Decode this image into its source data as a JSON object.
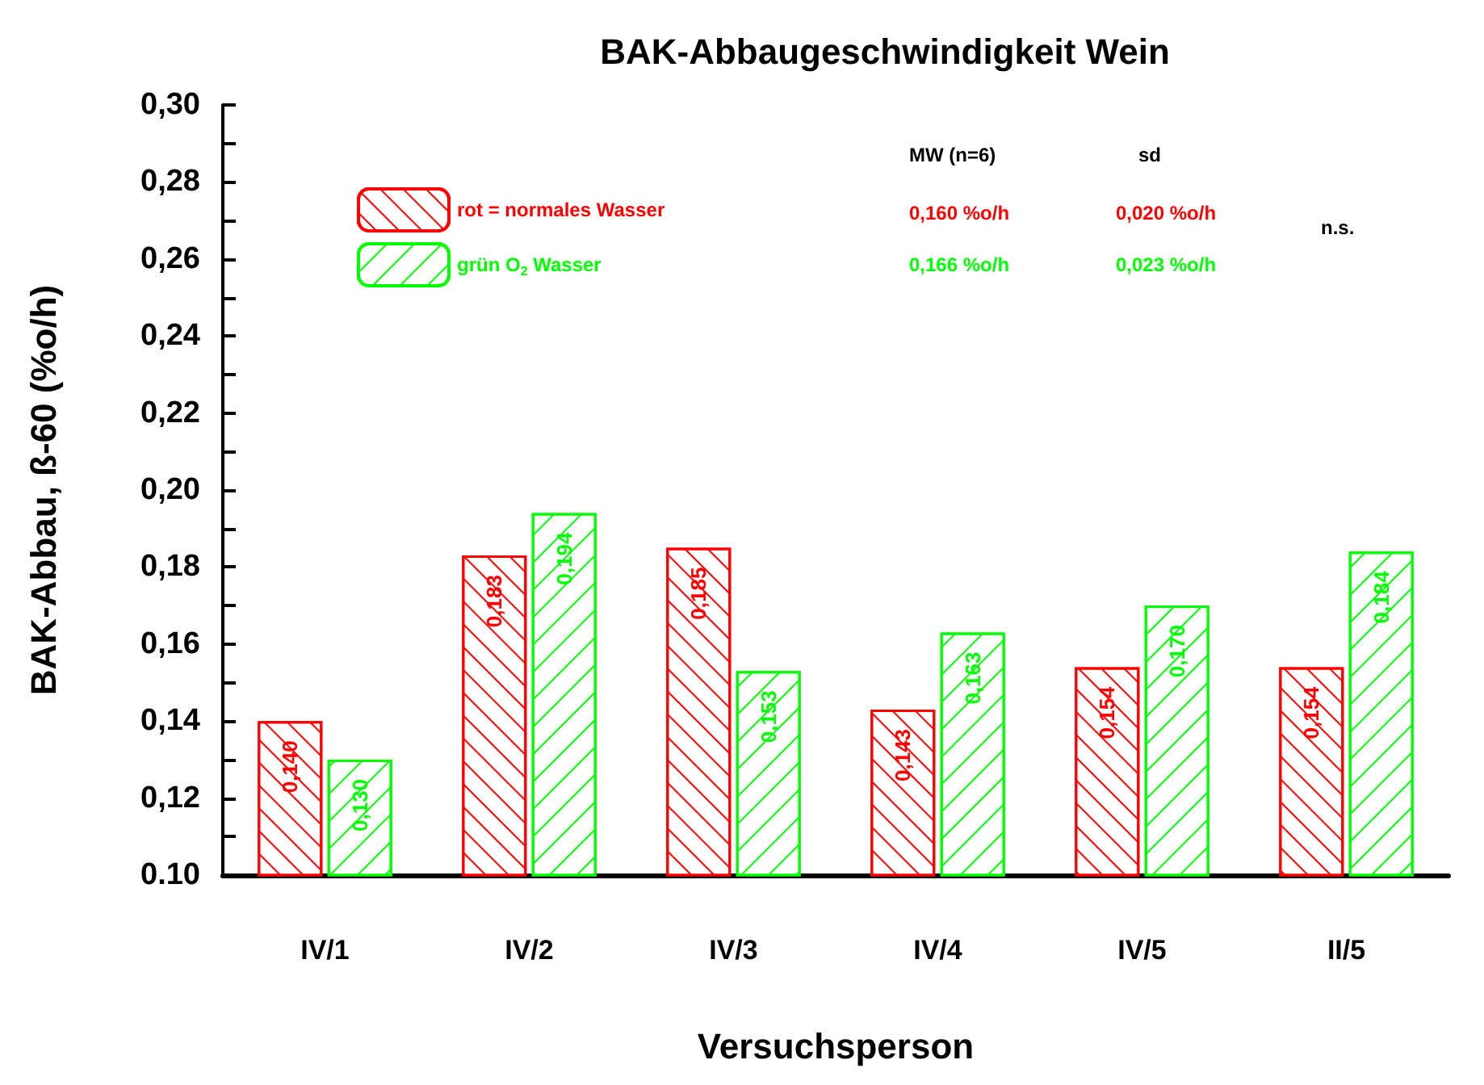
{
  "chart_data": {
    "type": "bar",
    "title": "BAK-Abbaugeschwindigkeit Wein",
    "xlabel": "Versuchsperson",
    "ylabel": "BAK-Abbau, ß-60 (%o/h)",
    "categories": [
      "IV/1",
      "IV/2",
      "IV/3",
      "IV/4",
      "IV/5",
      "II/5"
    ],
    "series": [
      {
        "name": "rot = normales Wasser",
        "color": "#ff0000",
        "values": [
          0.14,
          0.183,
          0.185,
          0.143,
          0.154,
          0.154
        ],
        "value_labels": [
          "0,140",
          "0,183",
          "0,185",
          "0,143",
          "0,154",
          "0,154"
        ]
      },
      {
        "name": "grün O$_{2}$ Wasser",
        "color": "#00ff00",
        "values": [
          0.13,
          0.194,
          0.153,
          0.163,
          0.17,
          0.184
        ],
        "value_labels": [
          "0,130",
          "0,194",
          "0,153",
          "0,163",
          "0,170",
          "0,184"
        ]
      }
    ],
    "ylim": [
      0.1,
      0.3
    ],
    "yticks": [
      {
        "value": 0.1,
        "label": "0.10"
      },
      {
        "value": 0.11,
        "label": null
      },
      {
        "value": 0.12,
        "label": "0,12"
      },
      {
        "value": 0.13,
        "label": null
      },
      {
        "value": 0.14,
        "label": "0,14"
      },
      {
        "value": 0.15,
        "label": null
      },
      {
        "value": 0.16,
        "label": "0,16"
      },
      {
        "value": 0.17,
        "label": null
      },
      {
        "value": 0.18,
        "label": "0,18"
      },
      {
        "value": 0.19,
        "label": null
      },
      {
        "value": 0.2,
        "label": "0,20"
      },
      {
        "value": 0.21,
        "label": null
      },
      {
        "value": 0.22,
        "label": "0,22"
      },
      {
        "value": 0.23,
        "label": null
      },
      {
        "value": 0.24,
        "label": "0,24"
      },
      {
        "value": 0.25,
        "label": null
      },
      {
        "value": 0.26,
        "label": "0,26"
      },
      {
        "value": 0.27,
        "label": null
      },
      {
        "value": 0.28,
        "label": "0,28"
      },
      {
        "value": 0.29,
        "label": null
      },
      {
        "value": 0.3,
        "label": "0,30"
      }
    ],
    "grid": false,
    "legend": "top left",
    "annotations": [
      "MW (n=6)",
      "sd",
      "0,160 %o/h",
      "0,020 %o/h",
      "0,166 %o/h",
      "0,023 %o/h",
      "n.s."
    ]
  }
}
